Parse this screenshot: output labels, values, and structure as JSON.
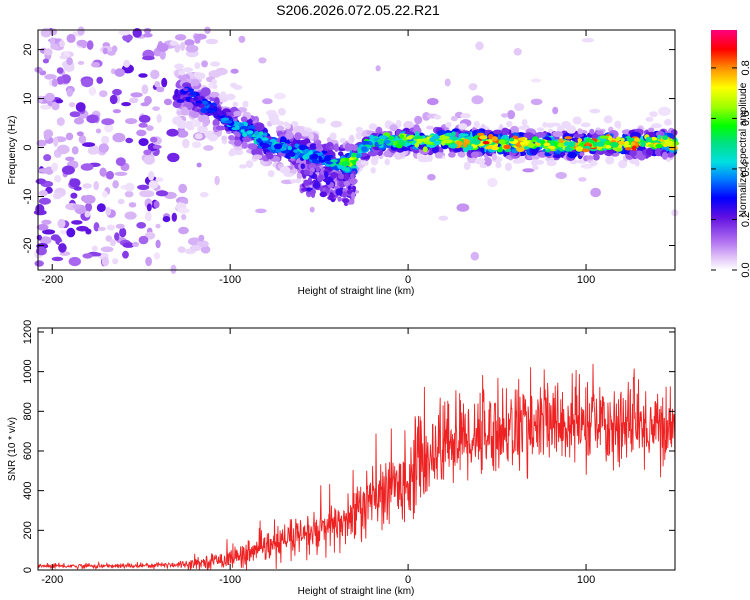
{
  "title": "S206.2026.072.05.22.R21",
  "chart_data": [
    {
      "type": "heatmap",
      "xlabel": "Height of straight line (km)",
      "ylabel": "Frequency (Hz)",
      "xlim": [
        -208,
        150
      ],
      "ylim": [
        -25,
        24
      ],
      "xticks": [
        -200,
        -100,
        0,
        100
      ],
      "yticks": [
        -20,
        -10,
        0,
        10,
        20
      ],
      "colorbar": {
        "label": "Normalized spectral amplitude",
        "range": [
          0,
          0.95
        ],
        "ticks": [
          0.0,
          0.2,
          0.4,
          0.6,
          0.8
        ]
      },
      "ridge": {
        "description_points_x": [
          -125,
          -110,
          -100,
          -90,
          -80,
          -70,
          -60,
          -50,
          -40,
          -33,
          -28,
          -20,
          0,
          20,
          40,
          60,
          80,
          100,
          120,
          150
        ],
        "description_points_y": [
          11,
          8,
          5,
          3,
          1,
          0,
          -1,
          -2,
          -3,
          -4,
          -1,
          1,
          1.5,
          1.2,
          1,
          0.8,
          0.5,
          0.5,
          0.7,
          1
        ],
        "peak_amplitude": [
          0.3,
          0.35,
          0.4,
          0.45,
          0.45,
          0.45,
          0.45,
          0.4,
          0.5,
          0.7,
          0.55,
          0.6,
          0.65,
          0.7,
          0.85,
          0.8,
          0.75,
          0.8,
          0.85,
          0.75
        ]
      }
    },
    {
      "type": "line",
      "xlabel": "Height of straight line (km)",
      "ylabel": "SNR (10 * v/v)",
      "xlim": [
        -208,
        150
      ],
      "ylim": [
        0,
        1220
      ],
      "xticks": [
        -200,
        -100,
        0,
        100
      ],
      "yticks": [
        0,
        200,
        400,
        600,
        800,
        1000,
        1200
      ],
      "color": "#ee2222",
      "envelope_x": [
        -208,
        -160,
        -140,
        -125,
        -110,
        -100,
        -90,
        -80,
        -70,
        -60,
        -50,
        -40,
        -30,
        -20,
        -10,
        0,
        10,
        20,
        30,
        40,
        60,
        80,
        100,
        120,
        150
      ],
      "envelope_mean": [
        20,
        20,
        25,
        30,
        45,
        60,
        80,
        110,
        140,
        170,
        190,
        220,
        290,
        350,
        400,
        470,
        560,
        640,
        660,
        690,
        720,
        740,
        730,
        730,
        720
      ],
      "envelope_spread": [
        8,
        8,
        10,
        15,
        25,
        35,
        45,
        55,
        65,
        75,
        85,
        95,
        110,
        120,
        130,
        140,
        150,
        150,
        150,
        150,
        150,
        150,
        140,
        140,
        130
      ]
    }
  ]
}
